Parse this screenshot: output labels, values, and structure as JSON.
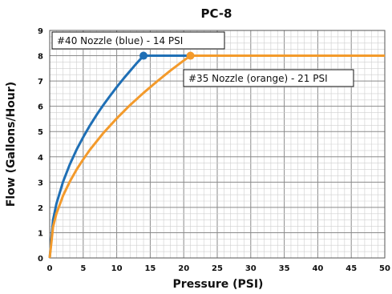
{
  "chart_data": {
    "type": "line",
    "title": "PC-8",
    "xlabel": "Pressure (PSI)",
    "ylabel": "Flow (Gallons/Hour)",
    "xlim": [
      0,
      50
    ],
    "ylim": [
      0,
      9
    ],
    "x_ticks": [
      "0",
      "5",
      "10",
      "15",
      "20",
      "25",
      "30",
      "35",
      "40",
      "45",
      "50"
    ],
    "y_ticks": [
      "0",
      "1",
      "2",
      "3",
      "4",
      "5",
      "6",
      "7",
      "8",
      "9"
    ],
    "grid": true,
    "series": [
      {
        "color": "#1f6fb5",
        "x": [
          0,
          0.5,
          1,
          2,
          3,
          4,
          5,
          6,
          7,
          8,
          9,
          10,
          11,
          12,
          13,
          14,
          50
        ],
        "y": [
          0,
          1.5,
          2.14,
          3.02,
          3.7,
          4.28,
          4.78,
          5.24,
          5.66,
          6.05,
          6.41,
          6.76,
          7.09,
          7.4,
          7.71,
          8.0,
          8.0
        ],
        "marker": {
          "x": 14,
          "y": 8
        }
      },
      {
        "color": "#f39a2b",
        "x": [
          0,
          0.5,
          1,
          2,
          3,
          4,
          5,
          6,
          8,
          10,
          12,
          14,
          16,
          18,
          20,
          21,
          50
        ],
        "y": [
          0,
          1.23,
          1.75,
          2.47,
          3.02,
          3.49,
          3.9,
          4.28,
          4.94,
          5.52,
          6.05,
          6.53,
          6.98,
          7.41,
          7.81,
          8.0,
          8.0
        ],
        "marker": {
          "x": 21,
          "y": 8
        }
      }
    ],
    "annotations": [
      {
        "text": "#40 Nozzle (blue) - 14 PSI"
      },
      {
        "text": "#35 Nozzle (orange) - 21 PSI"
      }
    ]
  }
}
